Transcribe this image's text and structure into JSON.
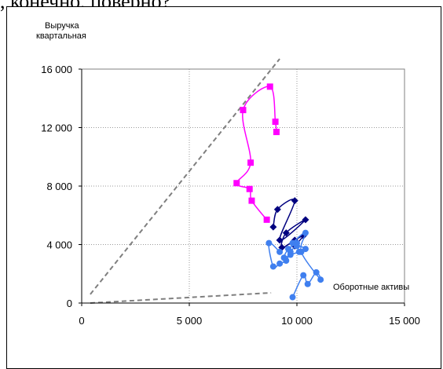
{
  "caption": ", конечно, поверно?",
  "chart_data": {
    "type": "scatter",
    "title": "",
    "ylabel_lines": [
      "Выручка",
      "квартальная"
    ],
    "xlabel": "Оборотные активы",
    "xlim": [
      0,
      15000
    ],
    "ylim": [
      0,
      16000
    ],
    "xticks": [
      0,
      5000,
      10000,
      15000
    ],
    "yticks": [
      0,
      4000,
      8000,
      12000,
      16000
    ],
    "xtick_labels": [
      "0",
      "5 000",
      "10 000",
      "15 000"
    ],
    "ytick_labels": [
      "0",
      "4 000",
      "8 000",
      "12 000",
      "16 000"
    ],
    "grid": {
      "x": true,
      "y": true,
      "style": "dotted"
    },
    "legend": "none",
    "series": [
      {
        "marker": "square",
        "color": "#ff00ff",
        "points": [
          [
            8600,
            5700
          ],
          [
            7900,
            7000
          ],
          [
            7800,
            7800
          ],
          [
            7200,
            8200
          ],
          [
            7850,
            9600
          ],
          [
            7500,
            13200
          ],
          [
            8750,
            14800
          ],
          [
            9000,
            12400
          ],
          [
            9050,
            11700
          ]
        ]
      },
      {
        "marker": "diamond",
        "color": "#00007f",
        "points": [
          [
            8900,
            5200
          ],
          [
            9100,
            6400
          ],
          [
            9900,
            7000
          ],
          [
            9200,
            4300
          ],
          [
            10400,
            5700
          ],
          [
            9500,
            4800
          ],
          [
            9300,
            3800
          ],
          [
            9900,
            4300
          ],
          [
            10300,
            4600
          ],
          [
            9900,
            3900
          ]
        ]
      },
      {
        "marker": "circle",
        "color": "#3f7fef",
        "points": [
          [
            9800,
            400
          ],
          [
            10300,
            1900
          ],
          [
            10500,
            1300
          ],
          [
            10900,
            2100
          ],
          [
            11100,
            1600
          ],
          [
            10200,
            3500
          ],
          [
            10400,
            4800
          ],
          [
            9800,
            4100
          ],
          [
            10000,
            4100
          ],
          [
            9600,
            3700
          ],
          [
            9400,
            3100
          ],
          [
            9700,
            3300
          ],
          [
            10100,
            3500
          ],
          [
            10400,
            3700
          ],
          [
            10000,
            3900
          ],
          [
            9700,
            3500
          ],
          [
            9500,
            2900
          ],
          [
            9200,
            2700
          ],
          [
            8900,
            2500
          ],
          [
            8700,
            4100
          ],
          [
            9200,
            3500
          ]
        ]
      }
    ],
    "reference_lines": [
      {
        "style": "dashed",
        "color": "#7f7f7f",
        "points": [
          [
            400,
            600
          ],
          [
            9200,
            16700
          ]
        ]
      },
      {
        "style": "dashed",
        "color": "#7f7f7f",
        "points": [
          [
            400,
            0
          ],
          [
            8800,
            700
          ]
        ]
      }
    ]
  }
}
